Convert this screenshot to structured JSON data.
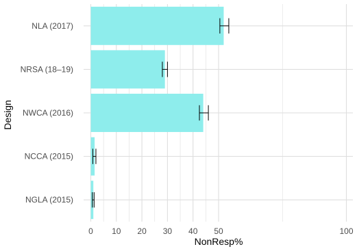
{
  "chart_data": {
    "type": "bar",
    "orientation": "horizontal",
    "categories": [
      "NLA (2017)",
      "NRSA (18–19)",
      "NWCA (2016)",
      "NCCA (2015)",
      "NGLA (2015)"
    ],
    "values": [
      52,
      29,
      44,
      1.5,
      1
    ],
    "error_low": [
      50.5,
      28,
      42.5,
      0.8,
      0.6
    ],
    "error_high": [
      54,
      30,
      46,
      2,
      1.3
    ],
    "xlabel": "NonResp%",
    "ylabel": "Design",
    "xlim": [
      0,
      100
    ],
    "x_ticks": [
      0,
      10,
      20,
      30,
      40,
      50,
      100
    ],
    "grid": true,
    "legend": "none",
    "colors": {
      "bar": "#8eedec",
      "errorbar": "#000000",
      "grid": "#dedede"
    }
  }
}
